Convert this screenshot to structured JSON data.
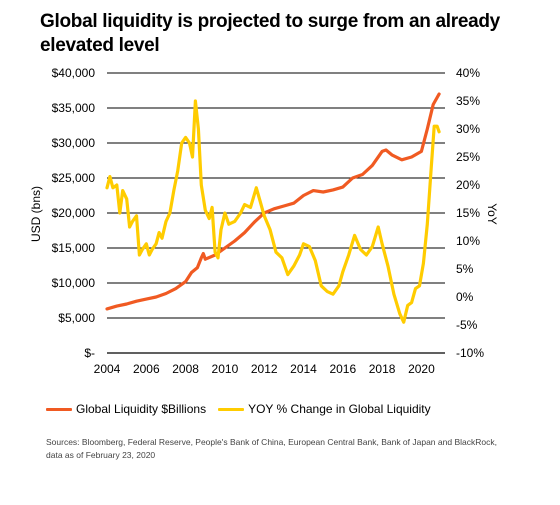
{
  "title": "Global liquidity is projected to surge from an already elevated level",
  "source": "Sources: Bloomberg, Federal Reserve, People's Bank of China, European Central Bank, Bank of Japan and BlackRock, data as of February 23, 2020",
  "colors": {
    "liquidity": "#F05A22",
    "yoy": "#FFCC00",
    "grid": "#000000"
  },
  "chart_data": {
    "type": "line",
    "xlabel": "",
    "ylabel": "USD (bns)",
    "y2label": "YoY",
    "xlim": [
      2004,
      2021.2
    ],
    "ylim": [
      0,
      40000
    ],
    "y2lim": [
      -10,
      40
    ],
    "x_ticks": [
      "2004",
      "2006",
      "2008",
      "2010",
      "2012",
      "2014",
      "2016",
      "2018",
      "2020"
    ],
    "y_ticks": [
      "$-",
      "$5,000",
      "$10,000",
      "$15,000",
      "$20,000",
      "$25,000",
      "$30,000",
      "$35,000",
      "$40,000"
    ],
    "y2_ticks": [
      "-10%",
      "-5%",
      "0%",
      "5%",
      "10%",
      "15%",
      "20%",
      "25%",
      "30%",
      "35%",
      "40%"
    ],
    "grid": "horizontal",
    "legend_position": "bottom",
    "series": [
      {
        "name": "Global Liquidity $Billions",
        "axis": "left",
        "points": [
          [
            2004.0,
            6300
          ],
          [
            2004.5,
            6700
          ],
          [
            2005.0,
            7000
          ],
          [
            2005.5,
            7400
          ],
          [
            2006.0,
            7700
          ],
          [
            2006.5,
            8000
          ],
          [
            2007.0,
            8500
          ],
          [
            2007.5,
            9200
          ],
          [
            2008.0,
            10200
          ],
          [
            2008.3,
            11500
          ],
          [
            2008.6,
            12200
          ],
          [
            2008.8,
            13600
          ],
          [
            2008.9,
            14200
          ],
          [
            2009.0,
            13400
          ],
          [
            2009.5,
            14000
          ],
          [
            2010.0,
            15000
          ],
          [
            2010.5,
            16000
          ],
          [
            2011.0,
            17200
          ],
          [
            2011.5,
            18700
          ],
          [
            2012.0,
            20000
          ],
          [
            2012.5,
            20600
          ],
          [
            2013.0,
            21000
          ],
          [
            2013.5,
            21400
          ],
          [
            2014.0,
            22500
          ],
          [
            2014.5,
            23200
          ],
          [
            2015.0,
            23000
          ],
          [
            2015.5,
            23300
          ],
          [
            2016.0,
            23700
          ],
          [
            2016.5,
            25000
          ],
          [
            2017.0,
            25500
          ],
          [
            2017.5,
            26800
          ],
          [
            2018.0,
            28800
          ],
          [
            2018.2,
            29000
          ],
          [
            2018.5,
            28300
          ],
          [
            2019.0,
            27600
          ],
          [
            2019.5,
            28000
          ],
          [
            2020.0,
            28800
          ],
          [
            2020.3,
            32000
          ],
          [
            2020.6,
            35500
          ],
          [
            2020.9,
            37000
          ]
        ]
      },
      {
        "name": "YOY % Change in Global Liquidity",
        "axis": "right",
        "points": [
          [
            2004.0,
            19.5
          ],
          [
            2004.15,
            21.5
          ],
          [
            2004.3,
            19.5
          ],
          [
            2004.5,
            20.0
          ],
          [
            2004.65,
            15.0
          ],
          [
            2004.8,
            19.0
          ],
          [
            2005.0,
            17.5
          ],
          [
            2005.15,
            12.5
          ],
          [
            2005.3,
            13.5
          ],
          [
            2005.5,
            14.5
          ],
          [
            2005.65,
            7.5
          ],
          [
            2005.8,
            8.5
          ],
          [
            2006.0,
            9.5
          ],
          [
            2006.15,
            7.5
          ],
          [
            2006.3,
            8.5
          ],
          [
            2006.5,
            9.5
          ],
          [
            2006.65,
            11.5
          ],
          [
            2006.8,
            10.5
          ],
          [
            2007.0,
            13.5
          ],
          [
            2007.2,
            15.0
          ],
          [
            2007.4,
            19.0
          ],
          [
            2007.6,
            22.5
          ],
          [
            2007.8,
            27.5
          ],
          [
            2008.0,
            28.5
          ],
          [
            2008.2,
            27.5
          ],
          [
            2008.35,
            25.0
          ],
          [
            2008.5,
            35.0
          ],
          [
            2008.65,
            30.0
          ],
          [
            2008.8,
            20.0
          ],
          [
            2009.0,
            15.5
          ],
          [
            2009.2,
            14.0
          ],
          [
            2009.35,
            16.0
          ],
          [
            2009.5,
            8.0
          ],
          [
            2009.65,
            7.0
          ],
          [
            2009.8,
            12.0
          ],
          [
            2010.0,
            15.0
          ],
          [
            2010.2,
            13.0
          ],
          [
            2010.5,
            13.5
          ],
          [
            2010.8,
            15.0
          ],
          [
            2011.0,
            16.5
          ],
          [
            2011.3,
            16.0
          ],
          [
            2011.6,
            19.5
          ],
          [
            2011.8,
            17.0
          ],
          [
            2012.0,
            14.5
          ],
          [
            2012.3,
            12.0
          ],
          [
            2012.6,
            8.0
          ],
          [
            2012.9,
            7.0
          ],
          [
            2013.2,
            4.0
          ],
          [
            2013.5,
            5.5
          ],
          [
            2013.8,
            7.5
          ],
          [
            2014.0,
            9.5
          ],
          [
            2014.3,
            9.0
          ],
          [
            2014.6,
            6.5
          ],
          [
            2014.9,
            2.0
          ],
          [
            2015.2,
            1.0
          ],
          [
            2015.5,
            0.5
          ],
          [
            2015.8,
            2.0
          ],
          [
            2016.0,
            4.5
          ],
          [
            2016.3,
            7.5
          ],
          [
            2016.6,
            11.0
          ],
          [
            2016.9,
            8.5
          ],
          [
            2017.2,
            7.5
          ],
          [
            2017.5,
            9.0
          ],
          [
            2017.8,
            12.5
          ],
          [
            2018.0,
            9.5
          ],
          [
            2018.3,
            5.5
          ],
          [
            2018.6,
            0.5
          ],
          [
            2018.9,
            -3.0
          ],
          [
            2019.1,
            -4.5
          ],
          [
            2019.3,
            -1.5
          ],
          [
            2019.5,
            -1.0
          ],
          [
            2019.7,
            1.5
          ],
          [
            2019.9,
            2.0
          ],
          [
            2020.1,
            6.0
          ],
          [
            2020.3,
            13.0
          ],
          [
            2020.5,
            23.0
          ],
          [
            2020.65,
            30.5
          ],
          [
            2020.8,
            30.5
          ],
          [
            2020.9,
            29.5
          ]
        ]
      }
    ]
  }
}
